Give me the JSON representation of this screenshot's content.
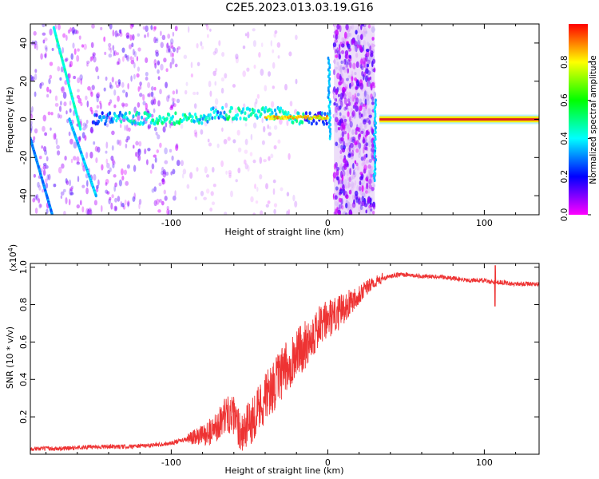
{
  "figure": {
    "title": "C2E5.2023.013.03.19.G16"
  },
  "chart_data": [
    {
      "type": "heatmap",
      "xlabel": "Height of straight line (km)",
      "ylabel": "Frequency (Hz)",
      "xlim": [
        -190,
        135
      ],
      "ylim": [
        -50,
        50
      ],
      "x_ticks": [
        -100,
        0,
        100
      ],
      "x_tick_labels": [
        "-100",
        "0",
        "100"
      ],
      "y_ticks": [
        -40,
        -20,
        0,
        20,
        40
      ],
      "y_tick_labels": [
        "-40",
        "-20",
        "0",
        "20",
        "40"
      ],
      "grid": false,
      "colorbar": {
        "label": "Normalized spectral amplitude",
        "range": [
          0,
          1
        ],
        "ticks": [
          0.0,
          0.2,
          0.4,
          0.6,
          0.8
        ],
        "tick_labels": [
          "0.0",
          "0.2",
          "0.4",
          "0.6",
          "0.8"
        ],
        "colors": [
          "#ff00ff",
          "#0000ff",
          "#00ffff",
          "#00ff00",
          "#ffff00",
          "#ff0000"
        ]
      },
      "features": [
        {
          "kind": "near-zero frequency band",
          "x_range": [
            -150,
            0
          ],
          "y_center": 0,
          "amplitude": "0.2-0.7"
        },
        {
          "kind": "strong zero-frequency line",
          "x_range": [
            33,
            135
          ],
          "y": 0,
          "amplitude": "0.8-1.0"
        },
        {
          "kind": "diagonal trace",
          "x_range": [
            -175,
            -158
          ],
          "y_range": [
            48,
            -5
          ]
        },
        {
          "kind": "diagonal trace",
          "x_range": [
            -165,
            -148
          ],
          "y_range": [
            0,
            -40
          ]
        },
        {
          "kind": "diagonal trace",
          "x_range": [
            -190,
            -176
          ],
          "y_range": [
            -10,
            -50
          ]
        }
      ]
    },
    {
      "type": "line",
      "xlabel": "Height of straight line (km)",
      "ylabel": "SNR (10 * v/v)",
      "y_scale_label": "(x10",
      "y_scale_exponent": "4",
      "y_scale_close": ")",
      "xlim": [
        -190,
        135
      ],
      "ylim": [
        0,
        1.02
      ],
      "x_ticks": [
        -100,
        0,
        100
      ],
      "x_tick_labels": [
        "-100",
        "0",
        "100"
      ],
      "y_ticks": [
        0.2,
        0.4,
        0.6,
        0.8,
        1.0
      ],
      "y_tick_labels": [
        "0.2",
        "0.4",
        "0.6",
        "0.8",
        "1.0"
      ],
      "grid": false,
      "series": [
        {
          "color": "#ee3333",
          "x": [
            -190,
            -170,
            -150,
            -130,
            -110,
            -100,
            -90,
            -80,
            -75,
            -70,
            -65,
            -60,
            -55,
            -50,
            -45,
            -40,
            -35,
            -30,
            -25,
            -20,
            -15,
            -10,
            -5,
            0,
            5,
            10,
            15,
            20,
            25,
            30,
            35,
            40,
            45,
            50,
            60,
            70,
            80,
            90,
            100,
            105,
            110,
            120,
            135
          ],
          "y": [
            0.03,
            0.03,
            0.04,
            0.04,
            0.05,
            0.06,
            0.08,
            0.1,
            0.12,
            0.16,
            0.22,
            0.2,
            0.12,
            0.16,
            0.24,
            0.3,
            0.36,
            0.42,
            0.48,
            0.54,
            0.58,
            0.64,
            0.68,
            0.72,
            0.74,
            0.78,
            0.82,
            0.86,
            0.89,
            0.92,
            0.94,
            0.95,
            0.96,
            0.96,
            0.95,
            0.95,
            0.94,
            0.93,
            0.93,
            0.92,
            0.92,
            0.91,
            0.91
          ]
        }
      ]
    }
  ]
}
